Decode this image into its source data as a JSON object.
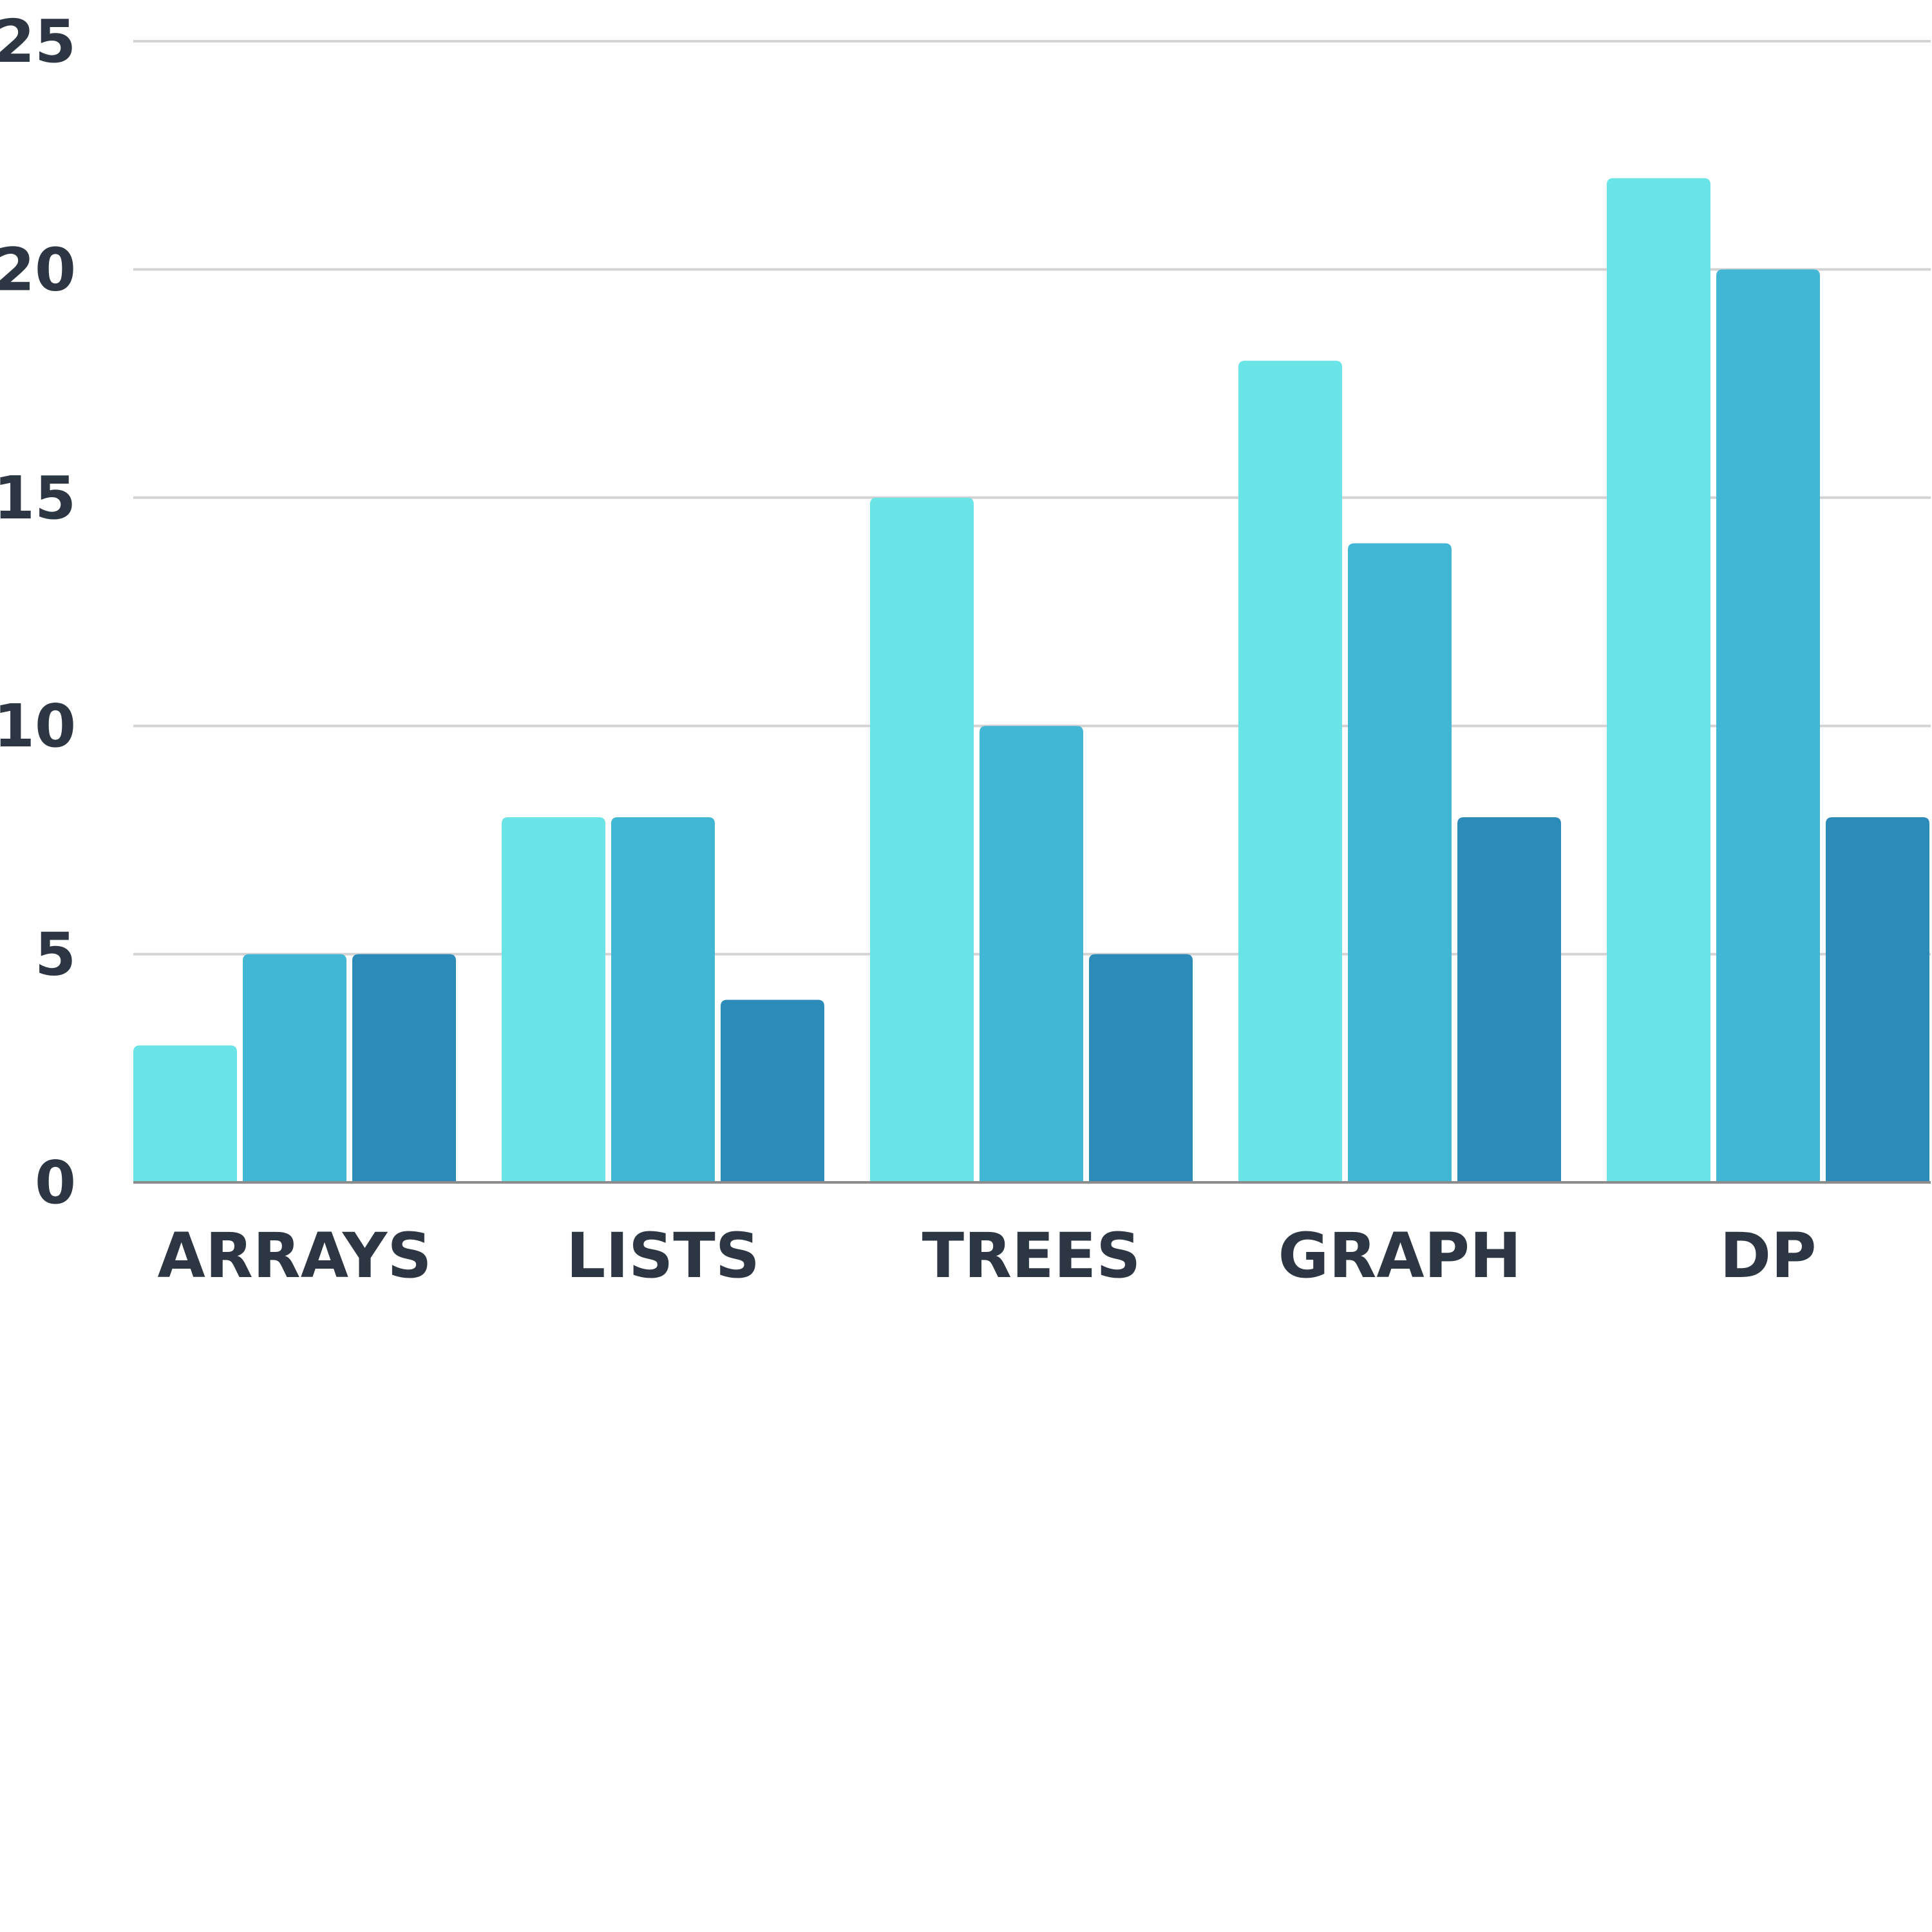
{
  "chart_data": {
    "type": "bar",
    "title": "",
    "xlabel": "",
    "ylabel": "",
    "categories": [
      "ARRAYS",
      "LISTS",
      "TREES",
      "GRAPH",
      "DP"
    ],
    "series": [
      {
        "color": "#6be4e8",
        "values": [
          3,
          8,
          15,
          18,
          22
        ]
      },
      {
        "color": "#42b6d5",
        "values": [
          5,
          8,
          10,
          14,
          20
        ]
      },
      {
        "color": "#2d8bb9",
        "values": [
          5,
          4,
          5,
          8,
          8
        ]
      }
    ],
    "ylim": [
      0,
      25
    ],
    "yticks": [
      0,
      5,
      10,
      15,
      20,
      25
    ],
    "grid": true,
    "legend": "none"
  }
}
